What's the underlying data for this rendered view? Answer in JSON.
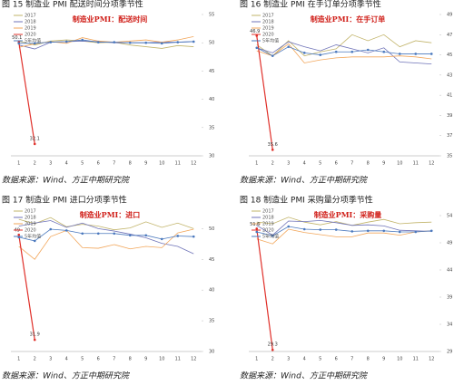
{
  "chart_data": [
    {
      "type": "line",
      "caption": "图 15  制造业 PMI 配送时间分项季节性",
      "title": "制造业PMI：配送时间",
      "source": "数据来源：Wind、方正中期研究院",
      "categories": [
        "1",
        "2",
        "3",
        "4",
        "5",
        "6",
        "7",
        "8",
        "9",
        "10",
        "11",
        "12"
      ],
      "ylim": [
        30,
        55
      ],
      "yticks": [
        30,
        35,
        40,
        45,
        50,
        55
      ],
      "series": [
        {
          "name": "2017",
          "color": "#c2b46a",
          "values": [
            50.3,
            49.6,
            50.3,
            50.5,
            50.3,
            50.0,
            50.1,
            49.6,
            49.3,
            49.0,
            49.5,
            49.3
          ]
        },
        {
          "name": "2018",
          "color": "#6f73b8",
          "values": [
            49.6,
            48.9,
            50.1,
            50.2,
            50.3,
            50.2,
            50.0,
            50.0,
            50.0,
            50.1,
            50.1,
            50.2
          ]
        },
        {
          "name": "2019",
          "color": "#f2a65a",
          "values": [
            49.2,
            49.8,
            50.2,
            49.9,
            50.9,
            50.3,
            50.1,
            50.3,
            50.5,
            50.1,
            50.5,
            51.1
          ]
        },
        {
          "name": "2020",
          "color": "#e0302a",
          "values": [
            50.1,
            32.1,
            null,
            null,
            null,
            null,
            null,
            null,
            null,
            null,
            null,
            null
          ],
          "value_labels": [
            "50.1",
            "32.1",
            null,
            null,
            null,
            null,
            null,
            null,
            null,
            null,
            null,
            null
          ]
        },
        {
          "name": "5年均值",
          "color": "#4a78bd",
          "values": [
            49.9,
            49.9,
            50.1,
            50.2,
            50.5,
            50.1,
            50.1,
            50.0,
            50.0,
            49.9,
            50.1,
            50.2
          ]
        }
      ]
    },
    {
      "type": "line",
      "caption": "图 16  制造业 PMI 在手订单分项季节性",
      "title": "制造业PMI：在手订单",
      "source": "数据来源：Wind、方正中期研究院",
      "categories": [
        "1",
        "2",
        "3",
        "4",
        "5",
        "6",
        "7",
        "8",
        "9",
        "10",
        "11",
        "12"
      ],
      "ylim": [
        35,
        49
      ],
      "yticks": [
        35,
        37,
        39,
        41,
        43,
        45,
        47,
        49
      ],
      "series": [
        {
          "name": "2017",
          "color": "#c2b46a",
          "values": [
            46.0,
            44.9,
            46.4,
            44.9,
            45.3,
            45.6,
            47.0,
            46.4,
            47.0,
            45.8,
            46.4,
            46.2
          ]
        },
        {
          "name": "2018",
          "color": "#6f73b8",
          "values": [
            45.7,
            45.2,
            46.3,
            45.8,
            45.4,
            46.0,
            45.6,
            45.2,
            45.7,
            44.3,
            44.2,
            44.1
          ]
        },
        {
          "name": "2019",
          "color": "#f2a65a",
          "values": [
            45.4,
            44.9,
            46.1,
            44.2,
            44.5,
            44.7,
            44.8,
            44.8,
            44.8,
            44.9,
            44.8,
            44.6
          ]
        },
        {
          "name": "2020",
          "color": "#e0302a",
          "values": [
            46.9,
            35.6,
            null,
            null,
            null,
            null,
            null,
            null,
            null,
            null,
            null,
            null
          ],
          "value_labels": [
            "46.9",
            "35.6",
            null,
            null,
            null,
            null,
            null,
            null,
            null,
            null,
            null,
            null
          ]
        },
        {
          "name": "5年均值",
          "color": "#4a78bd",
          "values": [
            45.7,
            44.9,
            45.8,
            45.2,
            45.0,
            45.3,
            45.3,
            45.5,
            45.3,
            45.1,
            45.1,
            45.1
          ]
        }
      ]
    },
    {
      "type": "line",
      "caption": "图 17  制造业 PMI 进口分项季节性",
      "title": "制造业PMI：进口",
      "source": "数据来源：Wind、方正中期研究院",
      "categories": [
        "1",
        "2",
        "3",
        "4",
        "5",
        "6",
        "7",
        "8",
        "9",
        "10",
        "11",
        "12"
      ],
      "ylim": [
        30,
        53
      ],
      "yticks": [
        30,
        35,
        40,
        45,
        50
      ],
      "series": [
        {
          "name": "2017",
          "color": "#c2b46a",
          "values": [
            51.5,
            50.8,
            51.8,
            50.3,
            50.7,
            50.4,
            49.8,
            50.1,
            51.1,
            50.2,
            50.9,
            50.0
          ]
        },
        {
          "name": "2018",
          "color": "#6f73b8",
          "values": [
            50.4,
            50.9,
            51.3,
            50.2,
            50.9,
            50.0,
            49.6,
            49.1,
            48.5,
            47.6,
            47.1,
            45.9
          ]
        },
        {
          "name": "2019",
          "color": "#f2a65a",
          "values": [
            47.1,
            45.0,
            48.7,
            49.7,
            46.9,
            46.8,
            47.4,
            46.7,
            47.1,
            46.9,
            49.3,
            49.9
          ]
        },
        {
          "name": "2020",
          "color": "#e0302a",
          "values": [
            49.0,
            31.9,
            null,
            null,
            null,
            null,
            null,
            null,
            null,
            null,
            null,
            null
          ],
          "value_labels": [
            "49",
            "31.9",
            null,
            null,
            null,
            null,
            null,
            null,
            null,
            null,
            null,
            null
          ]
        },
        {
          "name": "5年均值",
          "color": "#4a78bd",
          "values": [
            48.6,
            48.0,
            49.9,
            49.7,
            49.2,
            49.2,
            49.2,
            48.9,
            48.9,
            48.3,
            48.8,
            48.7
          ]
        }
      ]
    },
    {
      "type": "line",
      "caption": "图 18  制造业 PMI 采购量分项季节性",
      "title": "制造业PMI：采购量",
      "source": "数据来源：Wind、方正中期研究院",
      "categories": [
        "1",
        "2",
        "3",
        "4",
        "5",
        "6",
        "7",
        "8",
        "9",
        "10",
        "11",
        "12"
      ],
      "ylim": [
        29,
        55
      ],
      "yticks": [
        29,
        34,
        39,
        44,
        49,
        54
      ],
      "series": [
        {
          "name": "2017",
          "color": "#c2b46a",
          "values": [
            52.8,
            52.5,
            53.7,
            52.8,
            52.3,
            52.9,
            52.2,
            52.8,
            53.3,
            52.5,
            52.7,
            52.8
          ]
        },
        {
          "name": "2018",
          "color": "#6f73b8",
          "values": [
            52.2,
            50.4,
            53.0,
            52.9,
            53.1,
            52.7,
            52.2,
            52.3,
            52.1,
            51.3,
            51.2,
            51.1
          ]
        },
        {
          "name": "2019",
          "color": "#f2a65a",
          "values": [
            49.7,
            48.8,
            51.5,
            50.9,
            50.5,
            50.1,
            50.1,
            50.8,
            50.8,
            50.4,
            51.0,
            51.2
          ]
        },
        {
          "name": "2020",
          "color": "#e0302a",
          "values": [
            51.6,
            29.3,
            null,
            null,
            null,
            null,
            null,
            null,
            null,
            null,
            null,
            null
          ],
          "value_labels": [
            "51.6",
            "29.3",
            null,
            null,
            null,
            null,
            null,
            null,
            null,
            null,
            null,
            null
          ]
        },
        {
          "name": "5年均值",
          "color": "#4a78bd",
          "values": [
            51.0,
            50.3,
            52.0,
            51.5,
            51.4,
            51.4,
            51.1,
            51.2,
            51.2,
            51.0,
            51.0,
            51.2
          ]
        }
      ]
    }
  ]
}
